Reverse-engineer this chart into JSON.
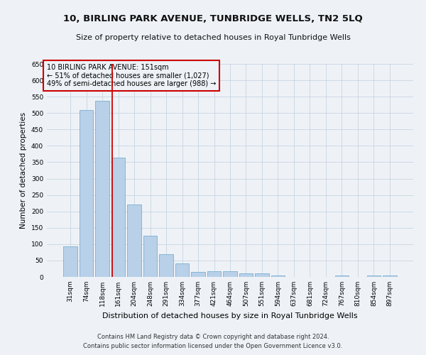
{
  "title": "10, BIRLING PARK AVENUE, TUNBRIDGE WELLS, TN2 5LQ",
  "subtitle": "Size of property relative to detached houses in Royal Tunbridge Wells",
  "xlabel": "Distribution of detached houses by size in Royal Tunbridge Wells",
  "ylabel": "Number of detached properties",
  "footer_line1": "Contains HM Land Registry data © Crown copyright and database right 2024.",
  "footer_line2": "Contains public sector information licensed under the Open Government Licence v3.0.",
  "categories": [
    "31sqm",
    "74sqm",
    "118sqm",
    "161sqm",
    "204sqm",
    "248sqm",
    "291sqm",
    "334sqm",
    "377sqm",
    "421sqm",
    "464sqm",
    "507sqm",
    "551sqm",
    "594sqm",
    "637sqm",
    "681sqm",
    "724sqm",
    "767sqm",
    "810sqm",
    "854sqm",
    "897sqm"
  ],
  "values": [
    93,
    510,
    537,
    365,
    220,
    125,
    70,
    42,
    15,
    17,
    18,
    10,
    10,
    5,
    1,
    1,
    0,
    4,
    0,
    4,
    4
  ],
  "bar_color": "#b8d0e8",
  "bar_edge_color": "#7aafd0",
  "property_label": "10 BIRLING PARK AVENUE: 151sqm",
  "annotation_line1": "← 51% of detached houses are smaller (1,027)",
  "annotation_line2": "49% of semi-detached houses are larger (988) →",
  "vline_color": "#cc0000",
  "vline_x_index": 2.62,
  "annotation_box_color": "#cc0000",
  "ylim": [
    0,
    650
  ],
  "yticks": [
    0,
    50,
    100,
    150,
    200,
    250,
    300,
    350,
    400,
    450,
    500,
    550,
    600,
    650
  ],
  "background_color": "#eef2f7",
  "grid_color": "#c8d4e0",
  "title_fontsize": 9.5,
  "subtitle_fontsize": 8,
  "ylabel_fontsize": 7.5,
  "xlabel_fontsize": 8,
  "tick_fontsize": 6.5,
  "footer_fontsize": 6,
  "ann_fontsize": 7
}
